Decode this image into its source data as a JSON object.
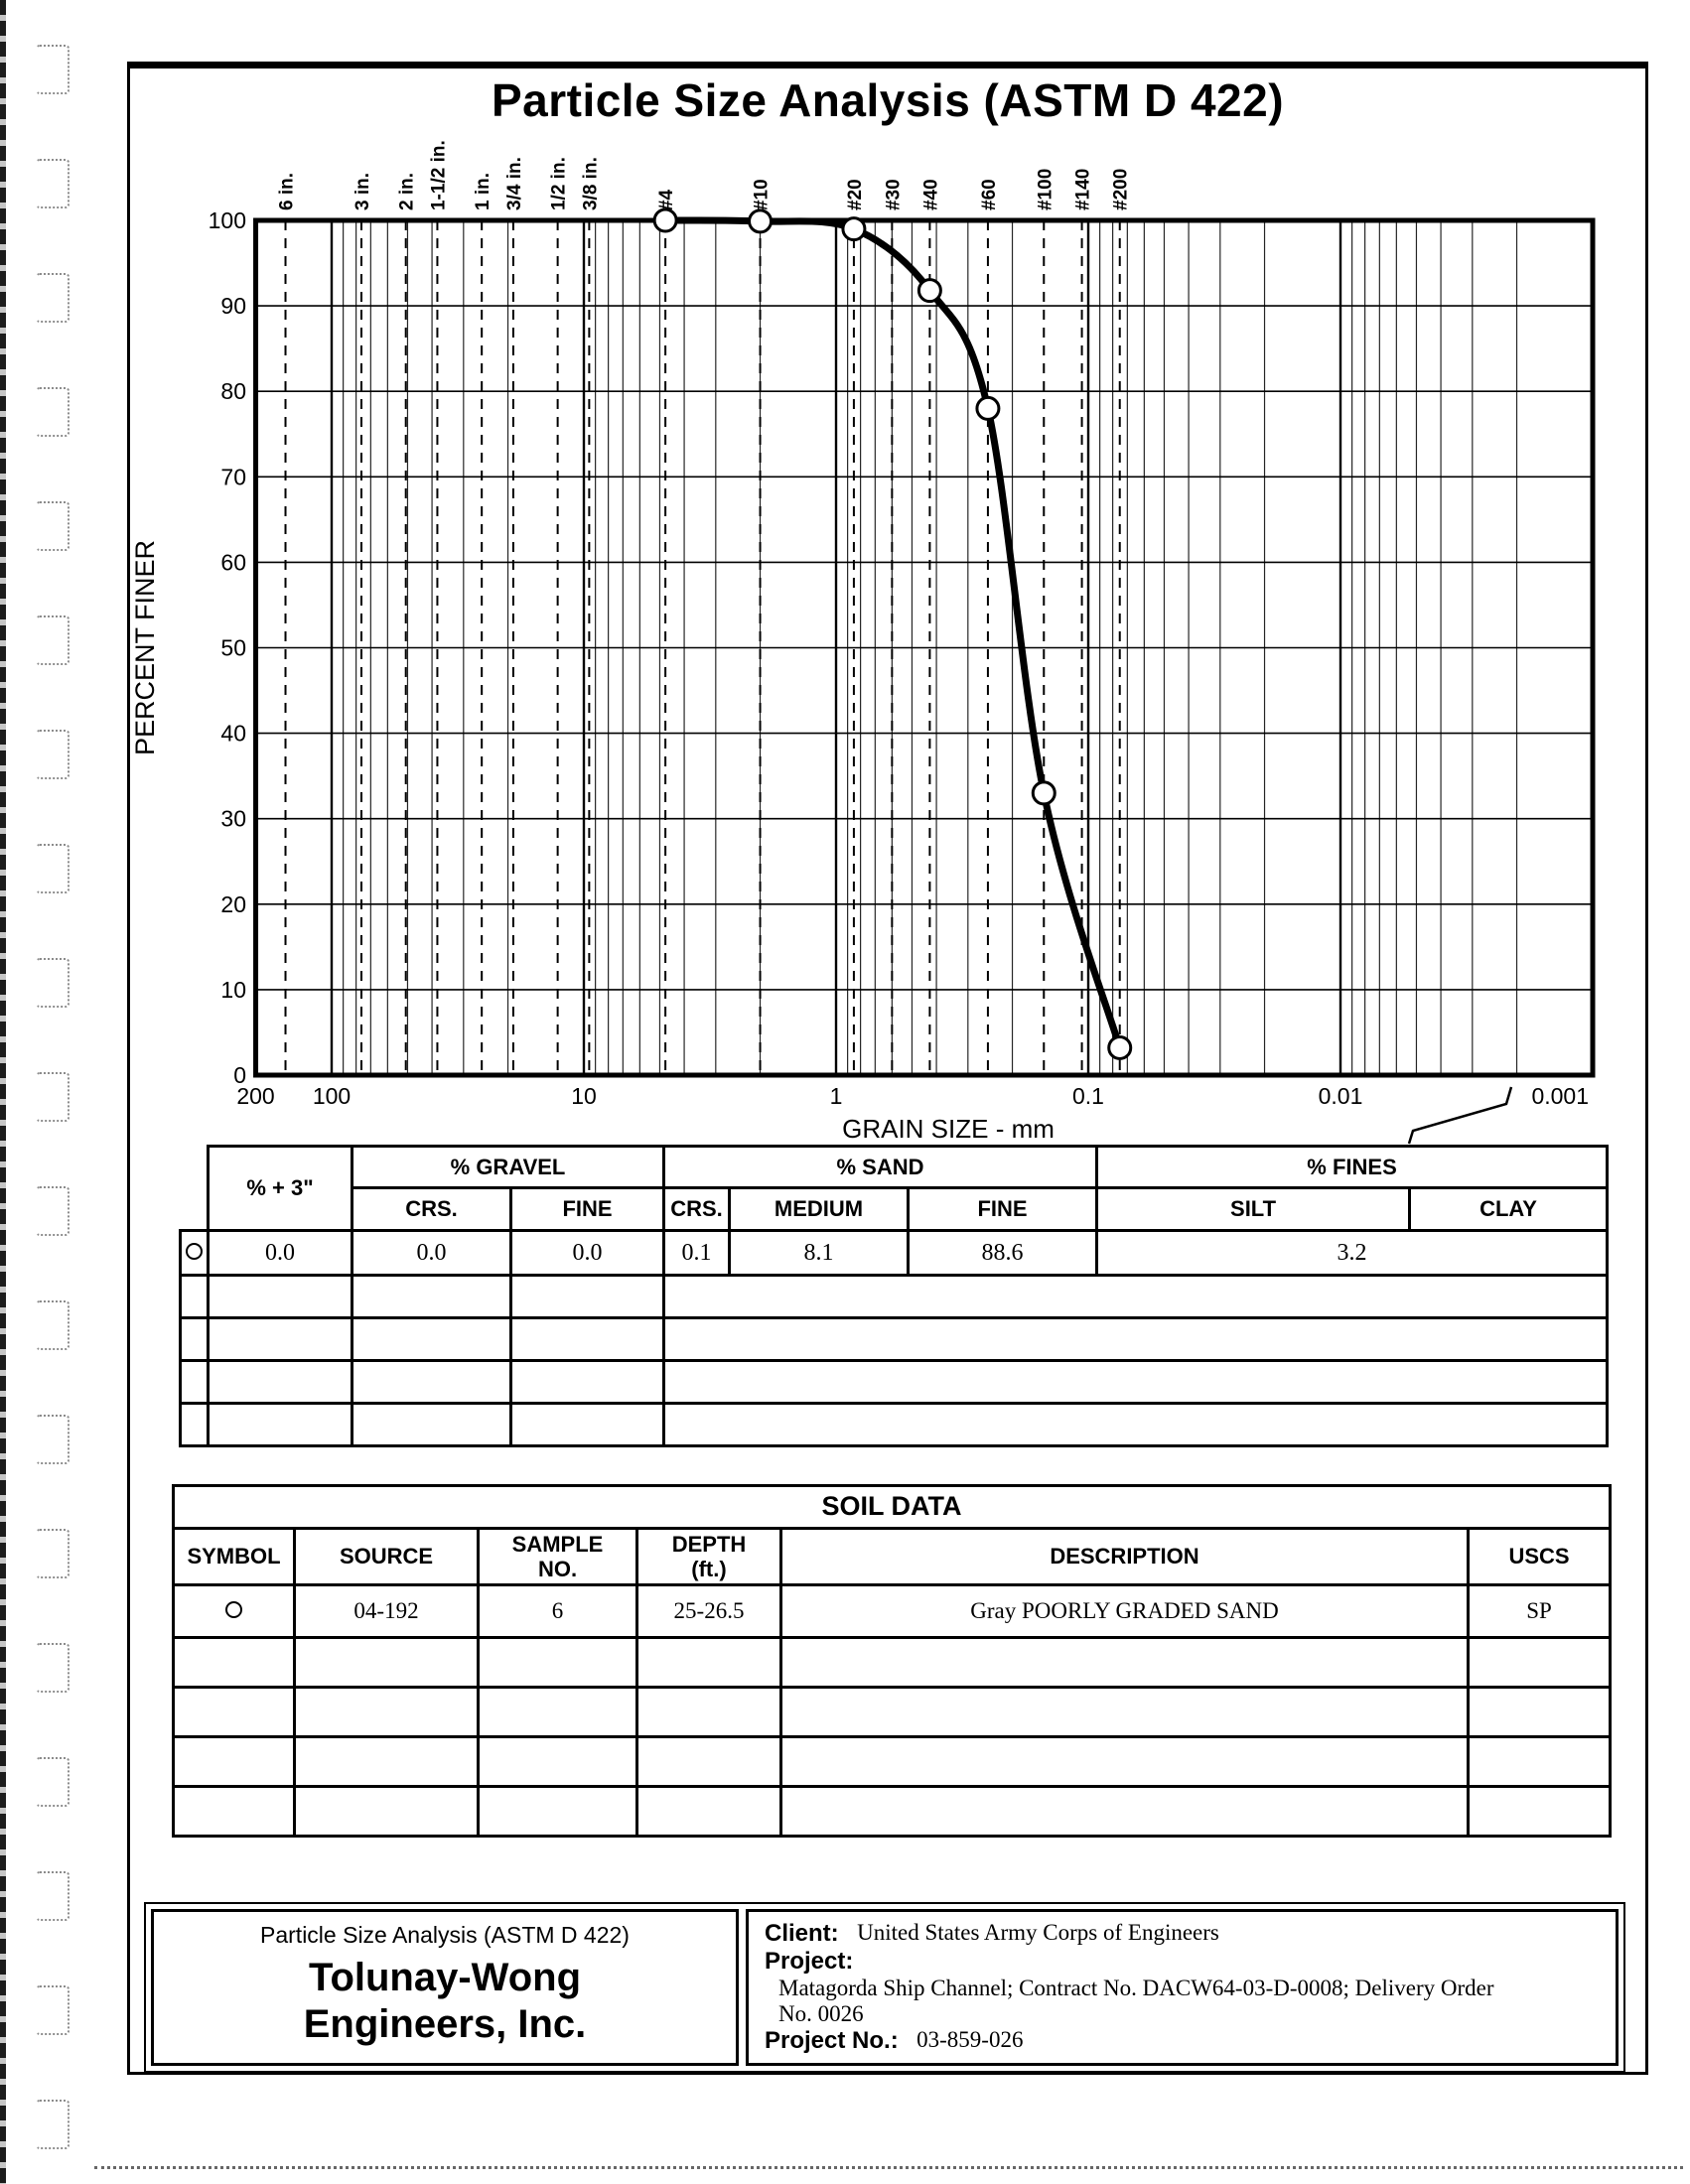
{
  "colors": {
    "ink": "#000000",
    "paper": "#ffffff"
  },
  "page_title": "Particle Size Analysis (ASTM D 422)",
  "chart_data": {
    "type": "line",
    "title": "Particle Size Analysis (ASTM D 422)",
    "xlabel": "GRAIN SIZE - mm",
    "ylabel": "PERCENT FINER",
    "x_scale": "log",
    "x_reversed": true,
    "xlim_mm": [
      200,
      0.001
    ],
    "ylim": [
      0,
      100
    ],
    "y_tick_step": 10,
    "grid": "log minor gridlines on",
    "legend": "none (see SOIL DATA table)",
    "x_tick_values": [
      200,
      100,
      10,
      1,
      0.1,
      0.01,
      0.001
    ],
    "x_tick_labels": [
      "200",
      "100",
      "10",
      "1",
      "0.1",
      "0.01",
      "0.001"
    ],
    "sieve_lines": [
      {
        "label": "6 in.",
        "mm": 152.4
      },
      {
        "label": "3 in.",
        "mm": 76.2
      },
      {
        "label": "2 in.",
        "mm": 50.8
      },
      {
        "label": "1-1/2 in.",
        "mm": 38.1
      },
      {
        "label": "1 in.",
        "mm": 25.4
      },
      {
        "label": "3/4 in.",
        "mm": 19.05
      },
      {
        "label": "1/2 in.",
        "mm": 12.7
      },
      {
        "label": "3/8 in.",
        "mm": 9.525
      },
      {
        "label": "#4",
        "mm": 4.75
      },
      {
        "label": "#10",
        "mm": 2.0
      },
      {
        "label": "#20",
        "mm": 0.85
      },
      {
        "label": "#30",
        "mm": 0.6
      },
      {
        "label": "#40",
        "mm": 0.425
      },
      {
        "label": "#60",
        "mm": 0.25
      },
      {
        "label": "#100",
        "mm": 0.15
      },
      {
        "label": "#140",
        "mm": 0.106
      },
      {
        "label": "#200",
        "mm": 0.075
      }
    ],
    "series": [
      {
        "symbol": "open-circle",
        "source": "04-192",
        "sample_no": "6",
        "points": [
          {
            "mm": 4.75,
            "pct_finer": 100.0
          },
          {
            "mm": 2.0,
            "pct_finer": 99.9
          },
          {
            "mm": 0.85,
            "pct_finer": 99.0
          },
          {
            "mm": 0.425,
            "pct_finer": 91.8
          },
          {
            "mm": 0.25,
            "pct_finer": 78.0
          },
          {
            "mm": 0.15,
            "pct_finer": 33.0
          },
          {
            "mm": 0.075,
            "pct_finer": 3.2
          }
        ]
      }
    ]
  },
  "gradation_table": {
    "group_headers": {
      "plus3": "% + 3\"",
      "gravel": "% GRAVEL",
      "sand": "% SAND",
      "fines": "% FINES"
    },
    "sub_headers": {
      "gravel_crs": "CRS.",
      "gravel_fine": "FINE",
      "sand_crs": "CRS.",
      "sand_medium": "MEDIUM",
      "sand_fine": "FINE",
      "silt": "SILT",
      "clay": "CLAY"
    },
    "rows": [
      {
        "symbol": "○",
        "plus3": "0.0",
        "gravel_crs": "0.0",
        "gravel_fine": "0.0",
        "sand_crs": "0.1",
        "sand_medium": "8.1",
        "sand_fine": "88.6",
        "fines_combined": "3.2"
      }
    ],
    "empty_rows": 4
  },
  "soil_data_table": {
    "title": "SOIL DATA",
    "headers": {
      "symbol": "SYMBOL",
      "source": "SOURCE",
      "sample_no": "SAMPLE NO.",
      "depth": "DEPTH (ft.)",
      "description": "DESCRIPTION",
      "uscs": "USCS"
    },
    "rows": [
      {
        "symbol": "○",
        "source": "04-192",
        "sample_no": "6",
        "depth": "25-26.5",
        "description": "Gray POORLY GRADED SAND",
        "uscs": "SP"
      }
    ],
    "empty_rows": 4
  },
  "footer": {
    "report_type": "Particle Size Analysis (ASTM D 422)",
    "company_name_line1": "Tolunay-Wong",
    "company_name_line2": "Engineers, Inc.",
    "client_label": "Client:",
    "client_value": "United States Army Corps of Engineers",
    "project_label": "Project:",
    "project_value": "Matagorda Ship Channel; Contract No. DACW64-03-D-0008; Delivery Order No. 0026",
    "project_no_label": "Project No.:",
    "project_no_value": "03-859-026"
  }
}
